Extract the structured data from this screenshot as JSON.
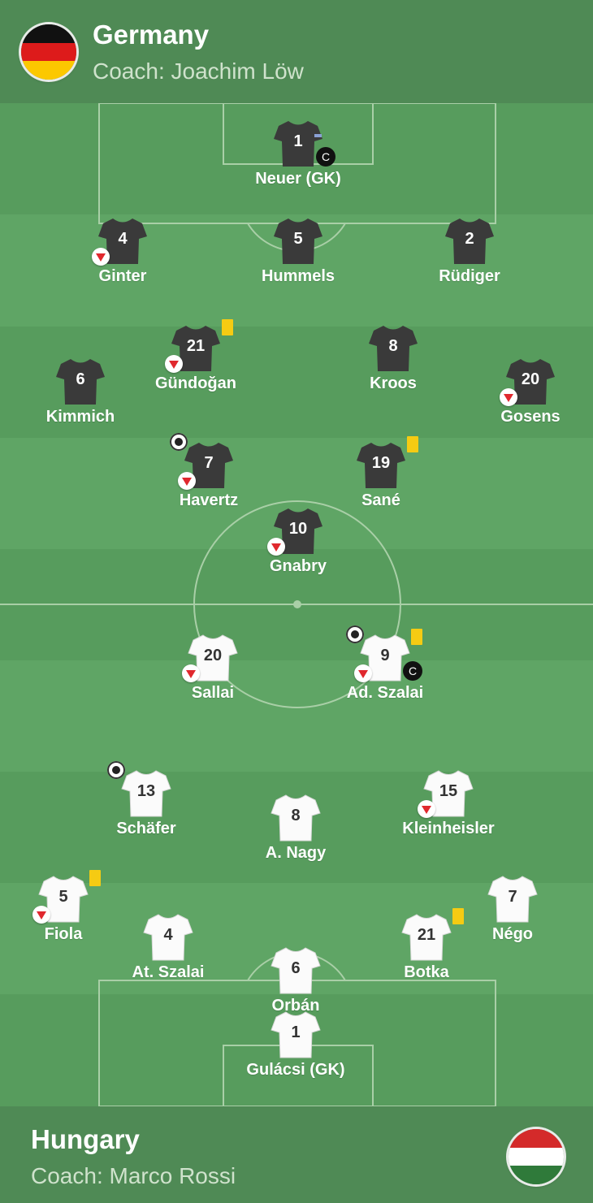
{
  "home": {
    "name": "Germany",
    "coach": "Coach: Joachim Löw",
    "flag_colors": [
      "#111111",
      "#dd1b1b",
      "#fcc800"
    ],
    "shirt_color": "#3a3a3a",
    "players": [
      {
        "number": "1",
        "name": "Neuer (GK)",
        "captain": "C"
      },
      {
        "number": "4",
        "name": "Ginter"
      },
      {
        "number": "5",
        "name": "Hummels"
      },
      {
        "number": "2",
        "name": "Rüdiger"
      },
      {
        "number": "21",
        "name": "Gündoğan"
      },
      {
        "number": "8",
        "name": "Kroos"
      },
      {
        "number": "6",
        "name": "Kimmich"
      },
      {
        "number": "20",
        "name": "Gosens"
      },
      {
        "number": "7",
        "name": "Havertz"
      },
      {
        "number": "19",
        "name": "Sané"
      },
      {
        "number": "10",
        "name": "Gnabry"
      }
    ]
  },
  "away": {
    "name": "Hungary",
    "coach": "Coach: Marco Rossi",
    "flag_colors": [
      "#d42a2a",
      "#ffffff",
      "#2f7a3a"
    ],
    "shirt_color": "#ffffff",
    "players": [
      {
        "number": "20",
        "name": "Sallai"
      },
      {
        "number": "9",
        "name": "Ad. Szalai",
        "captain": "C"
      },
      {
        "number": "13",
        "name": "Schäfer"
      },
      {
        "number": "15",
        "name": "Kleinheisler"
      },
      {
        "number": "8",
        "name": "A. Nagy"
      },
      {
        "number": "5",
        "name": "Fiola"
      },
      {
        "number": "7",
        "name": "Négo"
      },
      {
        "number": "4",
        "name": "At. Szalai"
      },
      {
        "number": "21",
        "name": "Botka"
      },
      {
        "number": "6",
        "name": "Orbán"
      },
      {
        "number": "1",
        "name": "Gulácsi (GK)"
      }
    ]
  },
  "colors": {
    "pitch_light": "#5fa565",
    "pitch_dark": "#579c5d",
    "header": "#4f8a55",
    "yellow_card": "#f5cb13",
    "sub_arrow": "#e0282e"
  },
  "icons": {
    "substitution": "sub-off-icon",
    "yellow_card": "yellow-card-icon",
    "goal": "football-icon",
    "captain": "captain-badge"
  }
}
